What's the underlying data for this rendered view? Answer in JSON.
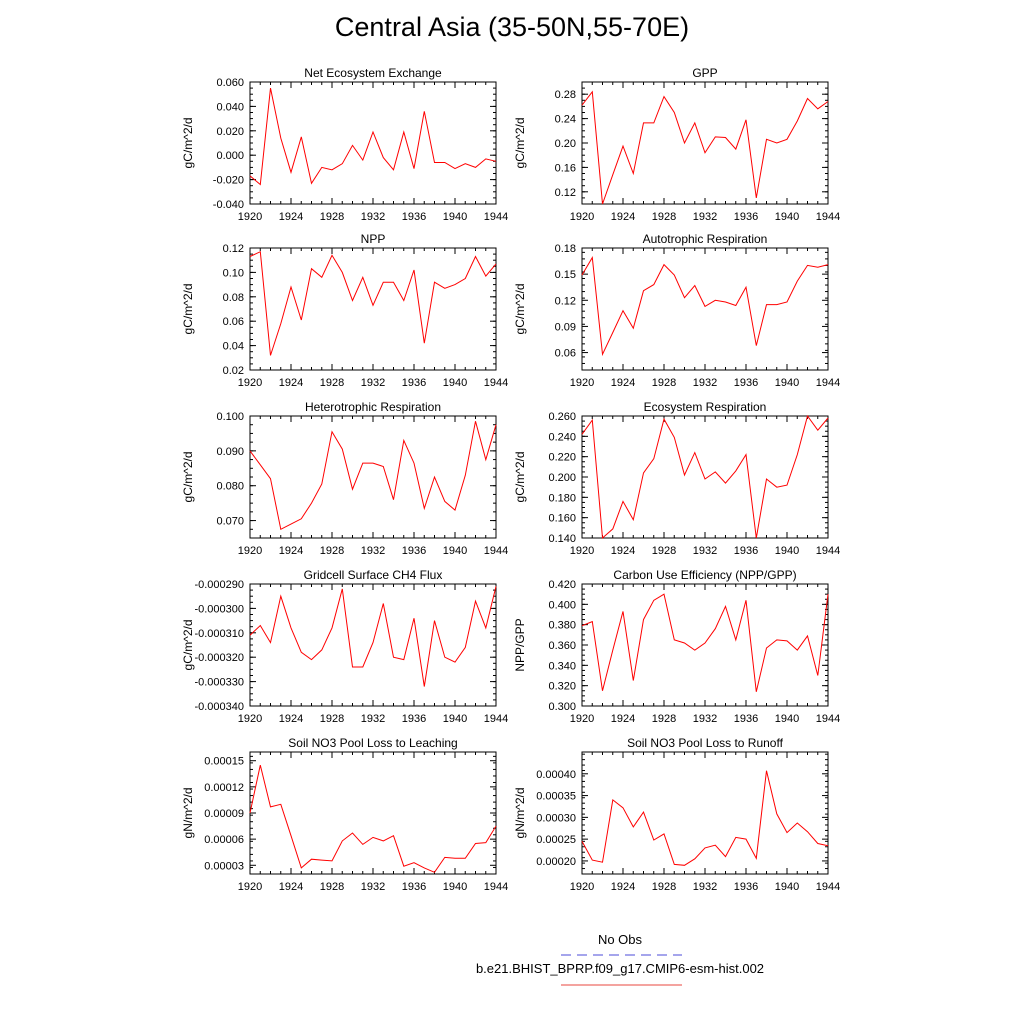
{
  "figure": {
    "title": "Central Asia (35-50N,55-70E)",
    "legend": [
      {
        "label": "No Obs",
        "color": "#4b4bd9",
        "style": "dashed"
      },
      {
        "label": "b.e21.BHIST_BPRP.f09_g17.CMIP6-esm-hist.002",
        "color": "#e8473f",
        "style": "solid"
      }
    ],
    "line_color": "#ff0000"
  },
  "chart_data": [
    {
      "type": "line",
      "title": "Net Ecosystem Exchange",
      "ylabel": "gC/m^2/d",
      "xlim": [
        1920,
        1944
      ],
      "ylim": [
        -0.04,
        0.06
      ],
      "xticks": [
        "1920",
        "1924",
        "1928",
        "1932",
        "1936",
        "1940",
        "1944"
      ],
      "yticks": [
        "-0.040",
        "-0.020",
        "0.000",
        "0.020",
        "0.040",
        "0.060"
      ],
      "x": [
        1920,
        1921,
        1922,
        1923,
        1924,
        1925,
        1926,
        1927,
        1928,
        1929,
        1930,
        1931,
        1932,
        1933,
        1934,
        1935,
        1936,
        1937,
        1938,
        1939,
        1940,
        1941,
        1942,
        1943,
        1944
      ],
      "values": [
        -0.017,
        -0.024,
        0.055,
        0.014,
        -0.014,
        0.015,
        -0.023,
        -0.01,
        -0.012,
        -0.007,
        0.008,
        -0.004,
        0.019,
        -0.002,
        -0.012,
        0.019,
        -0.011,
        0.036,
        -0.006,
        -0.006,
        -0.011,
        -0.007,
        -0.01,
        -0.003,
        -0.005
      ]
    },
    {
      "type": "line",
      "title": "GPP",
      "ylabel": "gC/m^2/d",
      "xlim": [
        1920,
        1944
      ],
      "ylim": [
        0.1,
        0.3
      ],
      "xticks": [
        "1920",
        "1924",
        "1928",
        "1932",
        "1936",
        "1940",
        "1944"
      ],
      "yticks": [
        "0.12",
        "0.16",
        "0.20",
        "0.24",
        "0.28"
      ],
      "x": [
        1920,
        1921,
        1922,
        1923,
        1924,
        1925,
        1926,
        1927,
        1928,
        1929,
        1930,
        1931,
        1932,
        1933,
        1934,
        1935,
        1936,
        1937,
        1938,
        1939,
        1940,
        1941,
        1942,
        1943,
        1944
      ],
      "values": [
        0.262,
        0.284,
        0.1,
        0.148,
        0.195,
        0.15,
        0.233,
        0.233,
        0.276,
        0.25,
        0.2,
        0.233,
        0.184,
        0.21,
        0.209,
        0.19,
        0.238,
        0.11,
        0.206,
        0.2,
        0.206,
        0.236,
        0.273,
        0.256,
        0.268
      ]
    },
    {
      "type": "line",
      "title": "NPP",
      "ylabel": "gC/m^2/d",
      "xlim": [
        1920,
        1944
      ],
      "ylim": [
        0.02,
        0.12
      ],
      "xticks": [
        "1920",
        "1924",
        "1928",
        "1932",
        "1936",
        "1940",
        "1944"
      ],
      "yticks": [
        "0.02",
        "0.04",
        "0.06",
        "0.08",
        "0.10",
        "0.12"
      ],
      "x": [
        1920,
        1921,
        1922,
        1923,
        1924,
        1925,
        1926,
        1927,
        1928,
        1929,
        1930,
        1931,
        1932,
        1933,
        1934,
        1935,
        1936,
        1937,
        1938,
        1939,
        1940,
        1941,
        1942,
        1943,
        1944
      ],
      "values": [
        0.113,
        0.117,
        0.032,
        0.058,
        0.088,
        0.061,
        0.103,
        0.096,
        0.114,
        0.1,
        0.077,
        0.096,
        0.073,
        0.092,
        0.092,
        0.077,
        0.102,
        0.042,
        0.092,
        0.087,
        0.09,
        0.095,
        0.113,
        0.097,
        0.107
      ]
    },
    {
      "type": "line",
      "title": "Autotrophic Respiration",
      "ylabel": "gC/m^2/d",
      "xlim": [
        1920,
        1944
      ],
      "ylim": [
        0.04,
        0.18
      ],
      "xticks": [
        "1920",
        "1924",
        "1928",
        "1932",
        "1936",
        "1940",
        "1944"
      ],
      "yticks": [
        "0.06",
        "0.09",
        "0.12",
        "0.15",
        "0.18"
      ],
      "x": [
        1920,
        1921,
        1922,
        1923,
        1924,
        1925,
        1926,
        1927,
        1928,
        1929,
        1930,
        1931,
        1932,
        1933,
        1934,
        1935,
        1936,
        1937,
        1938,
        1939,
        1940,
        1941,
        1942,
        1943,
        1944
      ],
      "values": [
        0.149,
        0.169,
        0.058,
        0.083,
        0.108,
        0.088,
        0.131,
        0.138,
        0.161,
        0.149,
        0.123,
        0.137,
        0.113,
        0.12,
        0.118,
        0.114,
        0.135,
        0.068,
        0.115,
        0.115,
        0.118,
        0.142,
        0.16,
        0.158,
        0.161
      ]
    },
    {
      "type": "line",
      "title": "Heterotrophic Respiration",
      "ylabel": "gC/m^2/d",
      "xlim": [
        1920,
        1944
      ],
      "ylim": [
        0.065,
        0.1
      ],
      "xticks": [
        "1920",
        "1924",
        "1928",
        "1932",
        "1936",
        "1940",
        "1944"
      ],
      "yticks": [
        "0.070",
        "0.080",
        "0.090",
        "0.100"
      ],
      "x": [
        1920,
        1921,
        1922,
        1923,
        1924,
        1925,
        1926,
        1927,
        1928,
        1929,
        1930,
        1931,
        1932,
        1933,
        1934,
        1935,
        1936,
        1937,
        1938,
        1939,
        1940,
        1941,
        1942,
        1943,
        1944
      ],
      "values": [
        0.09,
        0.086,
        0.082,
        0.0675,
        0.069,
        0.0705,
        0.075,
        0.0805,
        0.0955,
        0.0905,
        0.079,
        0.0865,
        0.0865,
        0.0855,
        0.076,
        0.093,
        0.0865,
        0.0735,
        0.0825,
        0.0755,
        0.073,
        0.083,
        0.0985,
        0.0875,
        0.0975
      ]
    },
    {
      "type": "line",
      "title": "Ecosystem Respiration",
      "ylabel": "gC/m^2/d",
      "xlim": [
        1920,
        1944
      ],
      "ylim": [
        0.14,
        0.26
      ],
      "xticks": [
        "1920",
        "1924",
        "1928",
        "1932",
        "1936",
        "1940",
        "1944"
      ],
      "yticks": [
        "0.140",
        "0.160",
        "0.180",
        "0.200",
        "0.220",
        "0.240",
        "0.260"
      ],
      "x": [
        1920,
        1921,
        1922,
        1923,
        1924,
        1925,
        1926,
        1927,
        1928,
        1929,
        1930,
        1931,
        1932,
        1933,
        1934,
        1935,
        1936,
        1937,
        1938,
        1939,
        1940,
        1941,
        1942,
        1943,
        1944
      ],
      "values": [
        0.242,
        0.256,
        0.14,
        0.149,
        0.176,
        0.158,
        0.204,
        0.218,
        0.257,
        0.239,
        0.202,
        0.224,
        0.198,
        0.205,
        0.194,
        0.206,
        0.222,
        0.14,
        0.198,
        0.19,
        0.192,
        0.222,
        0.26,
        0.246,
        0.258
      ]
    },
    {
      "type": "line",
      "title": "Gridcell Surface CH4 Flux",
      "ylabel": "gC/m^2/d",
      "xlim": [
        1920,
        1944
      ],
      "ylim": [
        -0.00034,
        -0.00029
      ],
      "xticks": [
        "1920",
        "1924",
        "1928",
        "1932",
        "1936",
        "1940",
        "1944"
      ],
      "yticks": [
        "-0.000340",
        "-0.000330",
        "-0.000320",
        "-0.000310",
        "-0.000300",
        "-0.000290"
      ],
      "x": [
        1920,
        1921,
        1922,
        1923,
        1924,
        1925,
        1926,
        1927,
        1928,
        1929,
        1930,
        1931,
        1932,
        1933,
        1934,
        1935,
        1936,
        1937,
        1938,
        1939,
        1940,
        1941,
        1942,
        1943,
        1944
      ],
      "values": [
        -0.000311,
        -0.000307,
        -0.000314,
        -0.000295,
        -0.000308,
        -0.000318,
        -0.000321,
        -0.000317,
        -0.000308,
        -0.000292,
        -0.000324,
        -0.000324,
        -0.000314,
        -0.000298,
        -0.00032,
        -0.000321,
        -0.000304,
        -0.000332,
        -0.000305,
        -0.00032,
        -0.000322,
        -0.000316,
        -0.000297,
        -0.000308,
        -0.000291
      ]
    },
    {
      "type": "line",
      "title": "Carbon Use Efficiency (NPP/GPP)",
      "ylabel": "NPP/GPP",
      "xlim": [
        1920,
        1944
      ],
      "ylim": [
        0.3,
        0.42
      ],
      "xticks": [
        "1920",
        "1924",
        "1928",
        "1932",
        "1936",
        "1940",
        "1944"
      ],
      "yticks": [
        "0.300",
        "0.320",
        "0.340",
        "0.360",
        "0.380",
        "0.400",
        "0.420"
      ],
      "x": [
        1920,
        1921,
        1922,
        1923,
        1924,
        1925,
        1926,
        1927,
        1928,
        1929,
        1930,
        1931,
        1932,
        1933,
        1934,
        1935,
        1936,
        1937,
        1938,
        1939,
        1940,
        1941,
        1942,
        1943,
        1944
      ],
      "values": [
        0.379,
        0.383,
        0.315,
        0.355,
        0.393,
        0.325,
        0.385,
        0.404,
        0.41,
        0.365,
        0.362,
        0.355,
        0.362,
        0.376,
        0.398,
        0.365,
        0.404,
        0.314,
        0.357,
        0.365,
        0.364,
        0.355,
        0.369,
        0.33,
        0.41
      ]
    },
    {
      "type": "line",
      "title": "Soil NO3 Pool Loss to Leaching",
      "ylabel": "gN/m^2/d",
      "xlim": [
        1920,
        1944
      ],
      "ylim": [
        2e-05,
        0.00016
      ],
      "xticks": [
        "1920",
        "1924",
        "1928",
        "1932",
        "1936",
        "1940",
        "1944"
      ],
      "yticks": [
        "0.00003",
        "0.00006",
        "0.00009",
        "0.00012",
        "0.00015"
      ],
      "x": [
        1920,
        1921,
        1922,
        1923,
        1924,
        1925,
        1926,
        1927,
        1928,
        1929,
        1930,
        1931,
        1932,
        1933,
        1934,
        1935,
        1936,
        1937,
        1938,
        1939,
        1940,
        1941,
        1942,
        1943,
        1944
      ],
      "values": [
        9e-05,
        0.000145,
        9.7e-05,
        0.0001,
        6.4e-05,
        2.7e-05,
        3.7e-05,
        3.6e-05,
        3.5e-05,
        5.8e-05,
        6.7e-05,
        5.4e-05,
        6.2e-05,
        5.8e-05,
        6.4e-05,
        2.9e-05,
        3.3e-05,
        2.7e-05,
        2.2e-05,
        3.9e-05,
        3.8e-05,
        3.8e-05,
        5.5e-05,
        5.6e-05,
        7.5e-05
      ]
    },
    {
      "type": "line",
      "title": "Soil NO3 Pool Loss to Runoff",
      "ylabel": "gN/m^2/d",
      "xlim": [
        1920,
        1944
      ],
      "ylim": [
        0.00017,
        0.00045
      ],
      "xticks": [
        "1920",
        "1924",
        "1928",
        "1932",
        "1936",
        "1940",
        "1944"
      ],
      "yticks": [
        "0.00020",
        "0.00025",
        "0.00030",
        "0.00035",
        "0.00040"
      ],
      "x": [
        1920,
        1921,
        1922,
        1923,
        1924,
        1925,
        1926,
        1927,
        1928,
        1929,
        1930,
        1931,
        1932,
        1933,
        1934,
        1935,
        1936,
        1937,
        1938,
        1939,
        1940,
        1941,
        1942,
        1943,
        1944
      ],
      "values": [
        0.000245,
        0.000202,
        0.000197,
        0.00034,
        0.000322,
        0.000278,
        0.000312,
        0.000248,
        0.000262,
        0.000192,
        0.00019,
        0.000205,
        0.00023,
        0.000236,
        0.00021,
        0.000254,
        0.00025,
        0.000206,
        0.000407,
        0.000308,
        0.000265,
        0.000287,
        0.000267,
        0.00024,
        0.000235
      ]
    }
  ]
}
